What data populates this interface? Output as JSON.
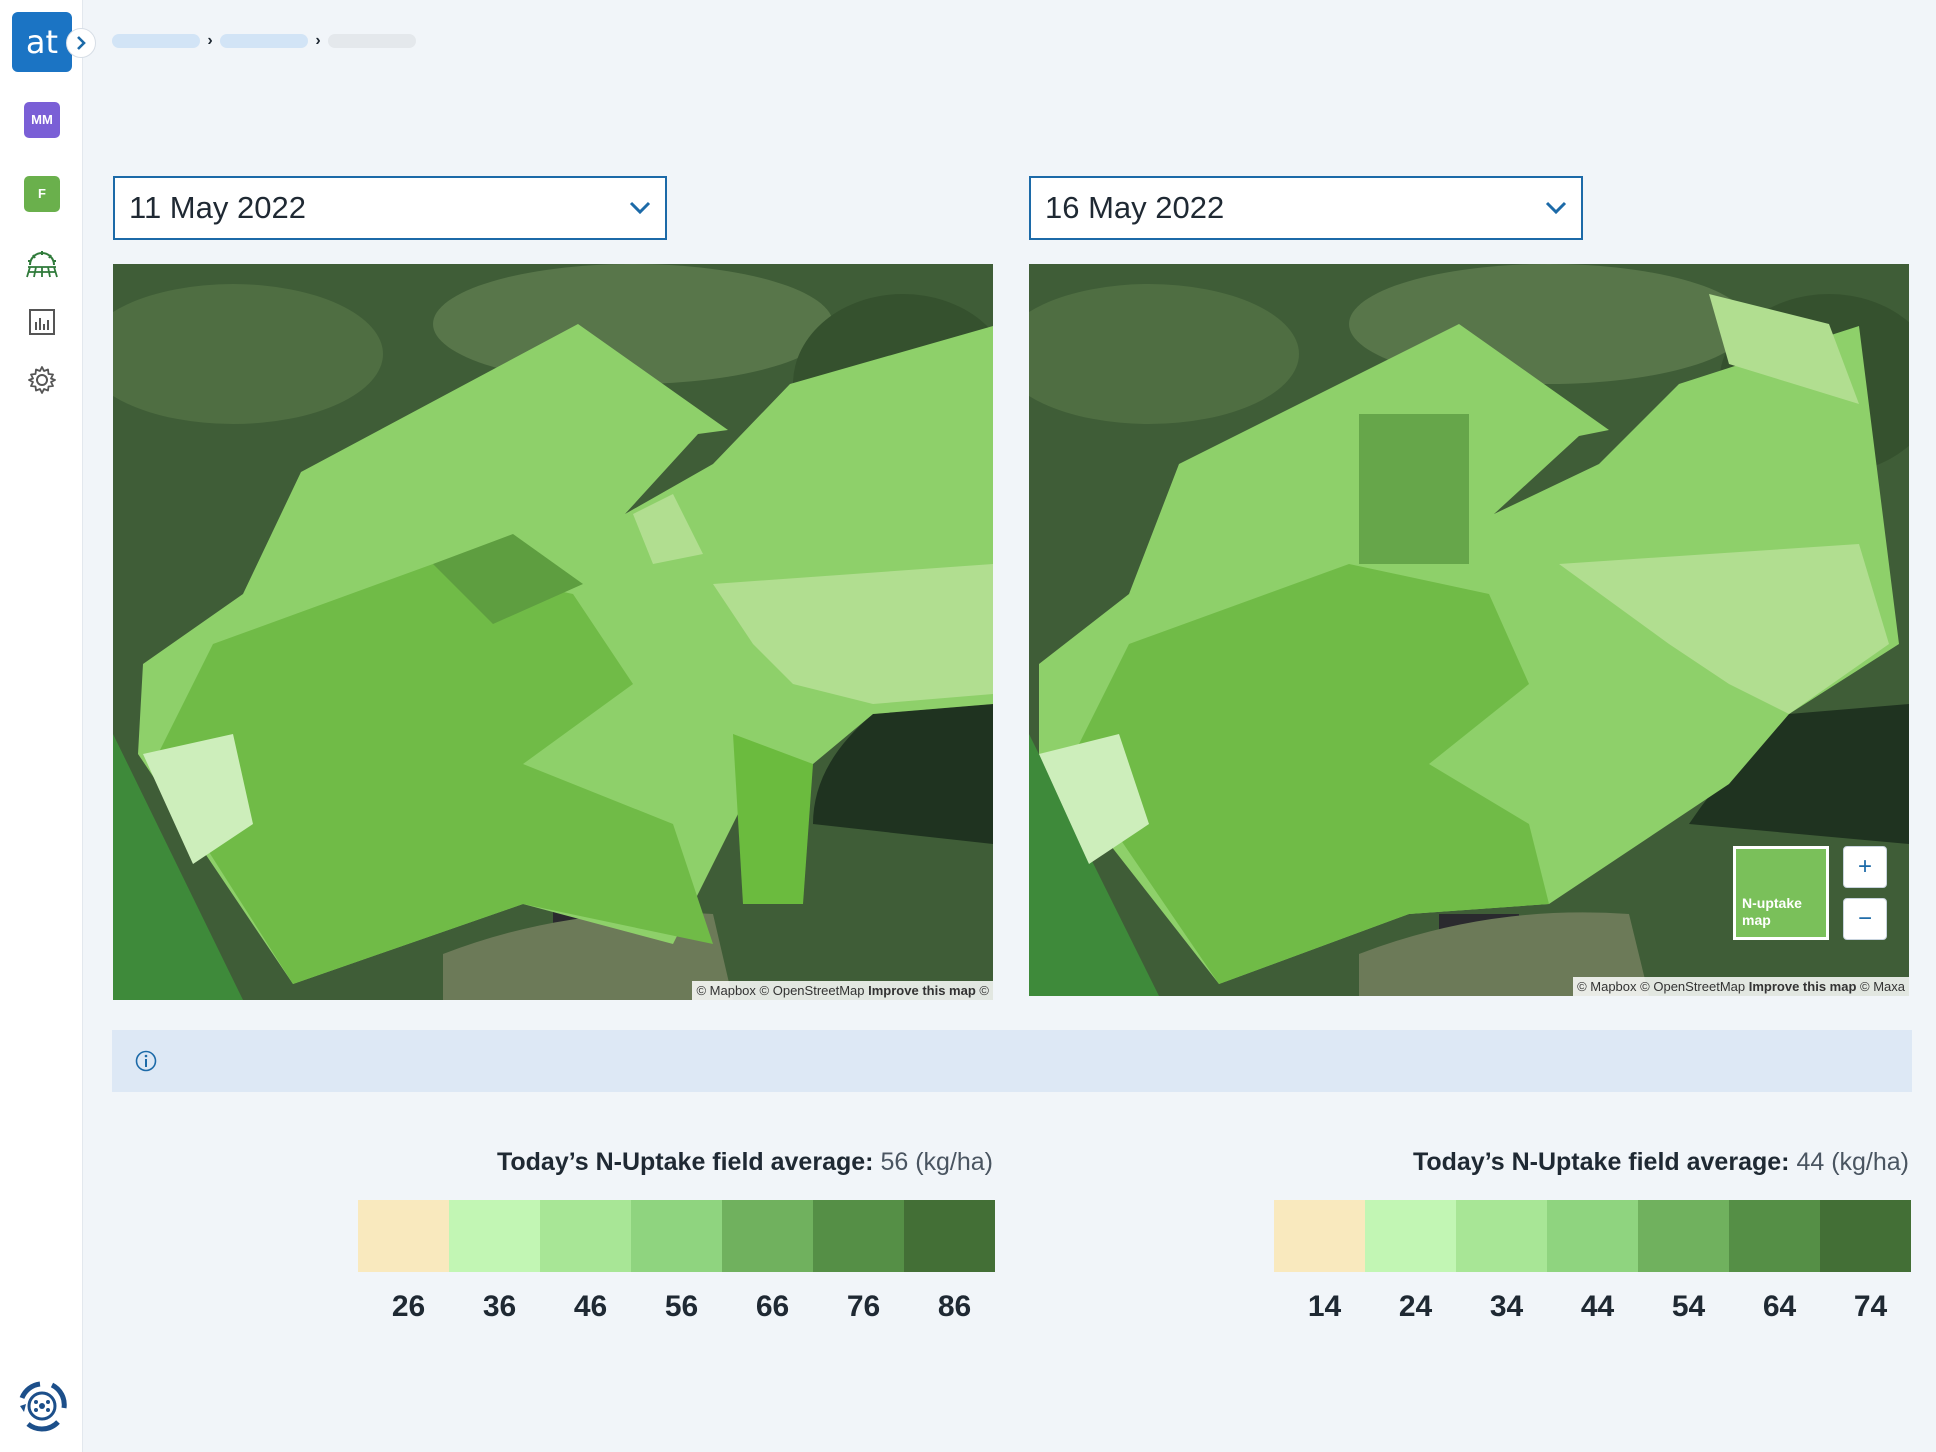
{
  "sidebar": {
    "logo_text": "at",
    "items": [
      {
        "label": "MM",
        "color": "#7a5fd6"
      },
      {
        "label": "F",
        "color": "#6ab04c"
      },
      {
        "icon": "field-crop-icon"
      },
      {
        "icon": "chart-icon"
      },
      {
        "icon": "gear-icon"
      }
    ],
    "bottom_icon": "tractor-wheel-logo-icon"
  },
  "comparison": {
    "left": {
      "date": "11 May 2022",
      "attribution": {
        "mapbox": "© Mapbox",
        "osm": "© OpenStreetMap",
        "improve": "Improve this map",
        "tail": "©"
      },
      "average": {
        "label": "Today’s N-Uptake field average:",
        "value": "56 (kg/ha)"
      },
      "scale_values": [
        "26",
        "36",
        "46",
        "56",
        "66",
        "76",
        "86"
      ]
    },
    "right": {
      "date": "16 May 2022",
      "attribution": {
        "mapbox": "© Mapbox",
        "osm": "© OpenStreetMap",
        "improve": "Improve this map",
        "tail": "© Maxa"
      },
      "layer_label": "N-uptake map",
      "zoom_in": "+",
      "zoom_out": "−",
      "average": {
        "label": "Today’s N-Uptake field average:",
        "value": "44 (kg/ha)"
      },
      "scale_values": [
        "14",
        "24",
        "34",
        "44",
        "54",
        "64",
        "74"
      ]
    }
  },
  "scale_colors": [
    "#f9e9be",
    "#c2f6b4",
    "#a8e696",
    "#8fd47f",
    "#70b15e",
    "#558f46",
    "#436f36"
  ],
  "colors": {
    "accent": "#1c6aa8",
    "info_bar": "#dde8f5"
  }
}
